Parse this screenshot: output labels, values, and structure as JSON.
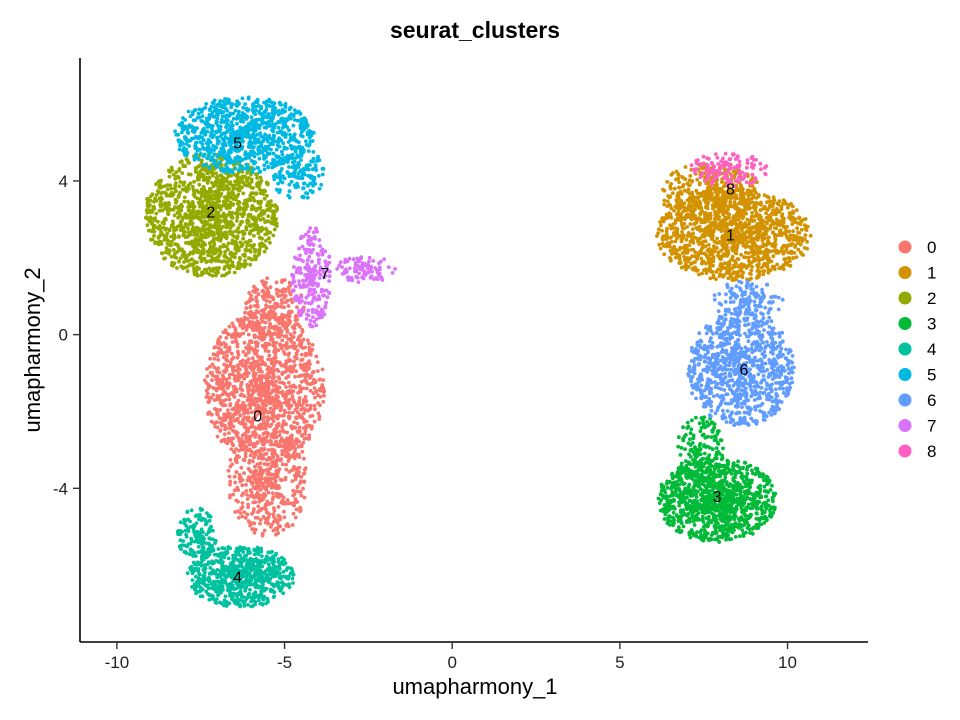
{
  "chart_data": {
    "type": "scatter",
    "title": "seurat_clusters",
    "xlabel": "umapharmony_1",
    "ylabel": "umapharmony_2",
    "xlim": [
      -11.1,
      12.4
    ],
    "ylim": [
      -8.0,
      7.2
    ],
    "xticks": [
      -10,
      -5,
      0,
      5,
      10
    ],
    "xtick_labels": [
      "-10",
      "-5",
      "0",
      "5",
      "10"
    ],
    "yticks": [
      -4,
      0,
      4
    ],
    "ytick_labels": [
      "-4",
      "0",
      "4"
    ],
    "grid": false,
    "legend_position": "right",
    "point_size": "small",
    "series": [
      {
        "name": "0",
        "color": "#F8766D",
        "label_at": [
          -5.8,
          -2.1
        ],
        "regions": [
          {
            "cx": -5.6,
            "cy": -1.4,
            "rx": 1.8,
            "ry": 2.0,
            "n": 1300
          },
          {
            "cx": -5.5,
            "cy": -3.8,
            "rx": 1.2,
            "ry": 1.5,
            "n": 450
          },
          {
            "cx": -5.3,
            "cy": 0.7,
            "rx": 0.9,
            "ry": 0.8,
            "n": 180
          }
        ]
      },
      {
        "name": "1",
        "color": "#D39200",
        "label_at": [
          8.3,
          2.6
        ],
        "regions": [
          {
            "cx": 8.4,
            "cy": 2.6,
            "rx": 2.3,
            "ry": 1.2,
            "n": 1200
          },
          {
            "cx": 7.7,
            "cy": 3.7,
            "rx": 1.5,
            "ry": 0.8,
            "n": 350
          }
        ]
      },
      {
        "name": "2",
        "color": "#93AA00",
        "label_at": [
          -7.2,
          3.2
        ],
        "regions": [
          {
            "cx": -7.2,
            "cy": 3.1,
            "rx": 2.0,
            "ry": 1.6,
            "n": 1350
          }
        ]
      },
      {
        "name": "3",
        "color": "#00BA38",
        "label_at": [
          7.9,
          -4.2
        ],
        "regions": [
          {
            "cx": 7.9,
            "cy": -4.3,
            "rx": 1.8,
            "ry": 1.1,
            "n": 1050
          },
          {
            "cx": 7.4,
            "cy": -3.0,
            "rx": 0.7,
            "ry": 0.9,
            "n": 150
          }
        ]
      },
      {
        "name": "4",
        "color": "#00C19F",
        "label_at": [
          -6.4,
          -6.3
        ],
        "regions": [
          {
            "cx": -6.3,
            "cy": -6.3,
            "rx": 1.6,
            "ry": 0.8,
            "n": 700
          },
          {
            "cx": -7.6,
            "cy": -5.2,
            "rx": 0.6,
            "ry": 0.7,
            "n": 150
          }
        ]
      },
      {
        "name": "5",
        "color": "#00B9E3",
        "label_at": [
          -6.4,
          5.0
        ],
        "regions": [
          {
            "cx": -6.2,
            "cy": 5.2,
            "rx": 2.1,
            "ry": 1.0,
            "n": 850
          },
          {
            "cx": -4.6,
            "cy": 4.2,
            "rx": 0.8,
            "ry": 0.7,
            "n": 150
          }
        ]
      },
      {
        "name": "6",
        "color": "#619CFF",
        "label_at": [
          8.7,
          -0.9
        ],
        "regions": [
          {
            "cx": 8.6,
            "cy": -0.9,
            "rx": 1.6,
            "ry": 1.5,
            "n": 900
          },
          {
            "cx": 8.8,
            "cy": 0.8,
            "rx": 1.1,
            "ry": 0.6,
            "n": 150
          }
        ]
      },
      {
        "name": "7",
        "color": "#DB72FB",
        "label_at": [
          -3.8,
          1.6
        ],
        "regions": [
          {
            "cx": -4.2,
            "cy": 1.5,
            "rx": 0.6,
            "ry": 1.3,
            "n": 220
          },
          {
            "cx": -2.6,
            "cy": 1.7,
            "rx": 0.9,
            "ry": 0.35,
            "n": 90
          }
        ]
      },
      {
        "name": "8",
        "color": "#FF61C3",
        "label_at": [
          8.3,
          3.8
        ],
        "regions": [
          {
            "cx": 8.3,
            "cy": 4.3,
            "rx": 1.2,
            "ry": 0.45,
            "n": 130
          }
        ]
      }
    ]
  }
}
